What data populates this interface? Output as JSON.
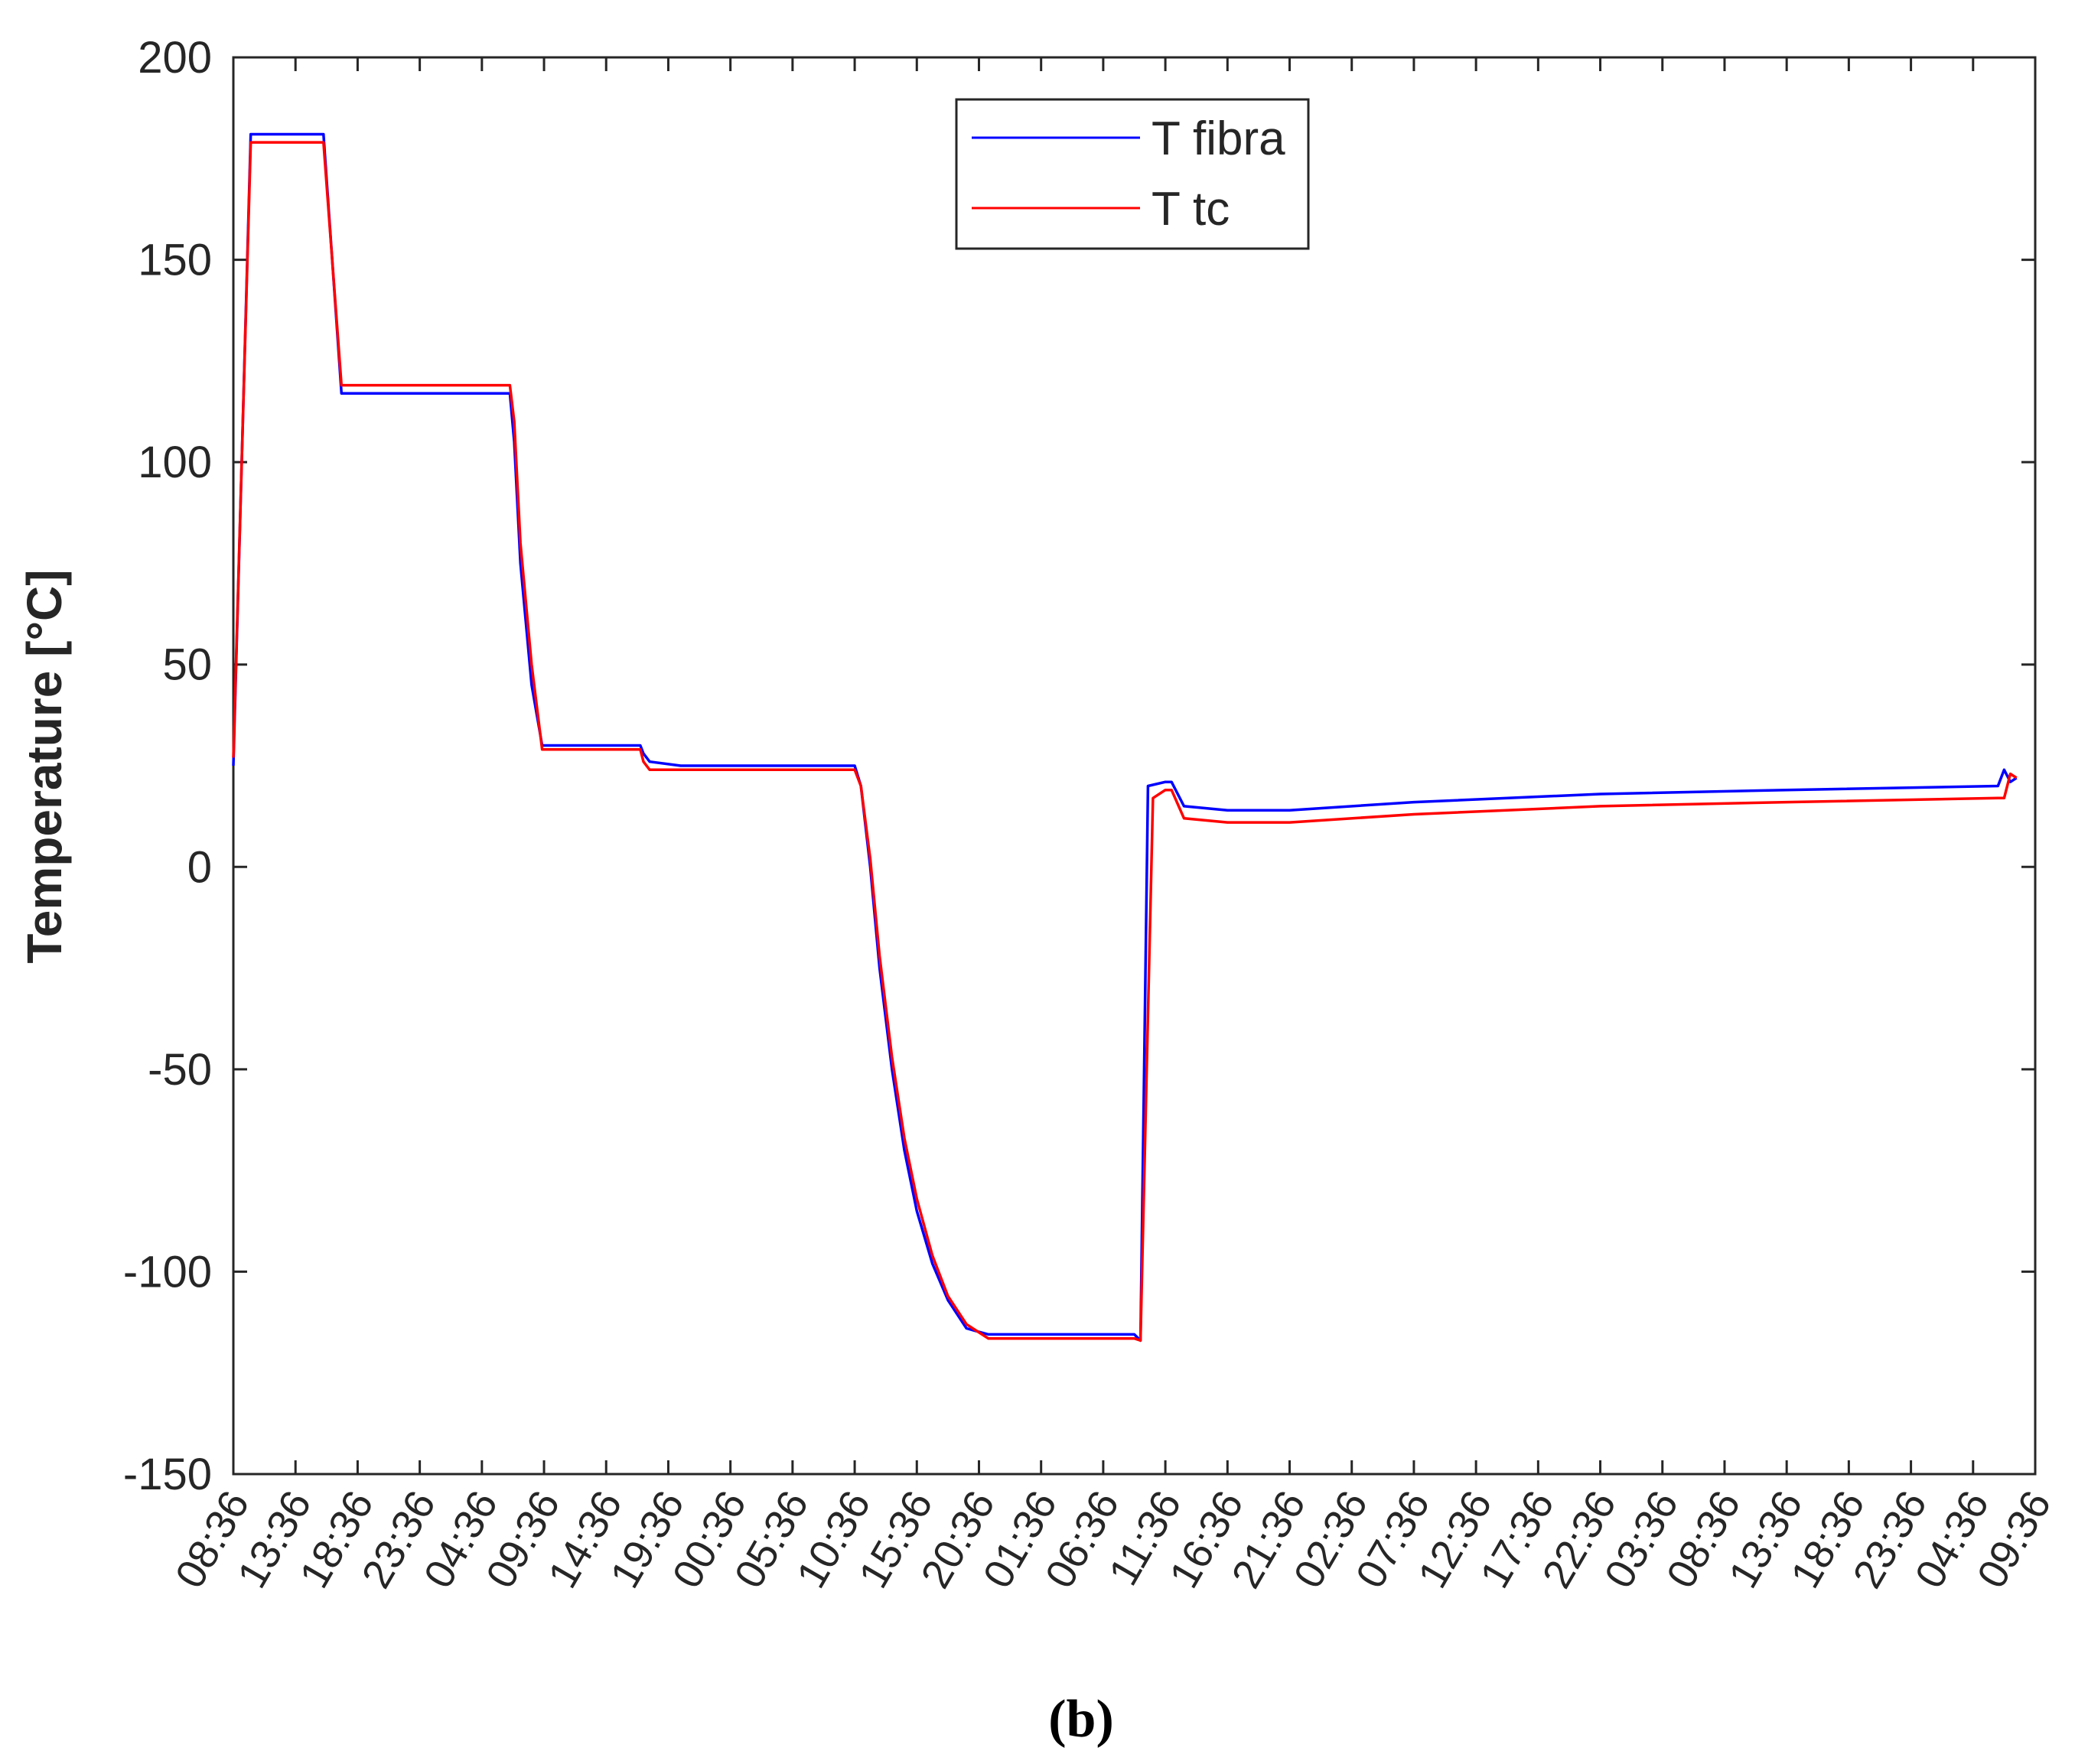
{
  "chart_data": {
    "type": "line",
    "title": "",
    "xlabel": "",
    "ylabel": "Temperature [°C]",
    "ylim": [
      -150,
      200
    ],
    "yticks": [
      -150,
      -100,
      -50,
      0,
      50,
      100,
      150,
      200
    ],
    "xticks": [
      "08:36",
      "13:36",
      "18:36",
      "23:36",
      "04:36",
      "09:36",
      "14:36",
      "19:36",
      "00:36",
      "05:36",
      "10:36",
      "15:36",
      "20:36",
      "01:36",
      "06:36",
      "11:36",
      "16:36",
      "21:36",
      "02:36",
      "07:36",
      "12:36",
      "17:36",
      "22:36",
      "03:36",
      "08:36",
      "13:36",
      "18:36",
      "23:36",
      "04:36",
      "09:36"
    ],
    "x_unit": "tick index (5-hour intervals)",
    "legend": {
      "position": "top-center"
    },
    "grid": false,
    "series": [
      {
        "name": "T fibra",
        "color": "#0000ff",
        "x": [
          0.0,
          0.28,
          0.95,
          1.45,
          1.74,
          4.45,
          4.52,
          4.62,
          4.8,
          4.97,
          5.08,
          5.2,
          6.55,
          6.6,
          6.7,
          7.2,
          9.5,
          10.0,
          10.1,
          10.25,
          10.4,
          10.6,
          10.8,
          11.0,
          11.25,
          11.5,
          11.8,
          12.15,
          14.5,
          14.6,
          14.72,
          15.0,
          15.1,
          15.3,
          16.0,
          17.0,
          19.0,
          22.0,
          25.0,
          28.4,
          28.5,
          28.6,
          28.7
        ],
        "y": [
          25,
          181,
          181,
          181,
          117,
          117,
          105,
          75,
          45,
          30,
          30,
          30,
          30,
          28,
          26,
          25,
          25,
          25,
          20,
          0,
          -25,
          -50,
          -70,
          -85,
          -98,
          -107,
          -114,
          -115.5,
          -115.5,
          -117,
          20,
          21,
          21,
          15,
          14,
          14,
          16,
          18,
          19,
          20,
          24,
          21,
          22
        ]
      },
      {
        "name": "T tc",
        "color": "#ff0000",
        "x": [
          0.0,
          0.28,
          0.95,
          1.45,
          1.74,
          4.45,
          4.52,
          4.62,
          4.8,
          4.97,
          5.08,
          5.2,
          6.55,
          6.6,
          6.7,
          7.2,
          9.5,
          10.0,
          10.1,
          10.25,
          10.4,
          10.6,
          10.8,
          11.0,
          11.25,
          11.5,
          11.8,
          12.15,
          14.5,
          14.6,
          14.8,
          15.0,
          15.1,
          15.3,
          16.0,
          17.0,
          19.0,
          22.0,
          25.0,
          28.4,
          28.5,
          28.6,
          28.7
        ],
        "y": [
          27,
          179,
          179,
          179,
          119,
          119,
          110,
          80,
          50,
          29,
          29,
          29,
          29,
          26,
          24,
          24,
          24,
          24,
          20,
          2,
          -22,
          -47,
          -67,
          -82,
          -96,
          -106,
          -113,
          -116.5,
          -116.5,
          -117,
          17,
          19,
          19,
          12,
          11,
          11,
          13,
          15,
          16,
          17,
          17,
          23,
          22
        ]
      }
    ]
  },
  "caption": "(b)"
}
